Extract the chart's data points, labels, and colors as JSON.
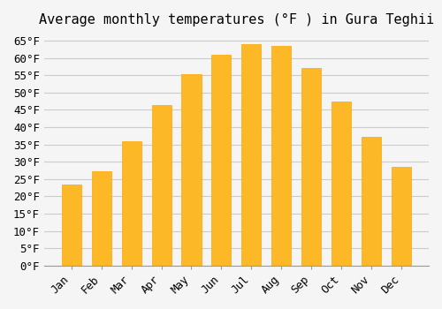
{
  "months": [
    "Jan",
    "Feb",
    "Mar",
    "Apr",
    "May",
    "Jun",
    "Jul",
    "Aug",
    "Sep",
    "Oct",
    "Nov",
    "Dec"
  ],
  "values": [
    23.5,
    27.2,
    36.0,
    46.4,
    55.4,
    61.0,
    64.0,
    63.5,
    57.0,
    47.3,
    37.3,
    28.4
  ],
  "bar_color": "#FDB828",
  "bar_edge_color": "#FFA500",
  "title": "Average monthly temperatures (°F ) in Gura Teghii",
  "ylabel": "",
  "xlabel": "",
  "ylim": [
    0,
    67
  ],
  "yticks": [
    0,
    5,
    10,
    15,
    20,
    25,
    30,
    35,
    40,
    45,
    50,
    55,
    60,
    65
  ],
  "title_fontsize": 11,
  "tick_fontsize": 9,
  "background_color": "#f5f5f5",
  "grid_color": "#cccccc",
  "font_family": "monospace"
}
